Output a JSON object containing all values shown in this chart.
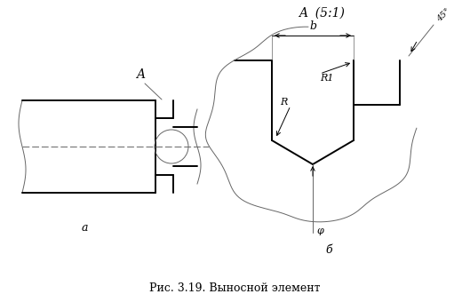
{
  "title_right": "A  (5:1)",
  "label_a": "A",
  "label_b_dim": "b",
  "label_R1": "R1",
  "label_R": "R",
  "label_phi": "φ",
  "label_45": "45°",
  "label_fig_a": "a",
  "label_fig_b": "б",
  "caption": "Рис. 3.19. Выносной элемент",
  "line_color": "#000000",
  "thin_color": "#666666",
  "dash_color": "#666666",
  "bg_color": "#ffffff"
}
